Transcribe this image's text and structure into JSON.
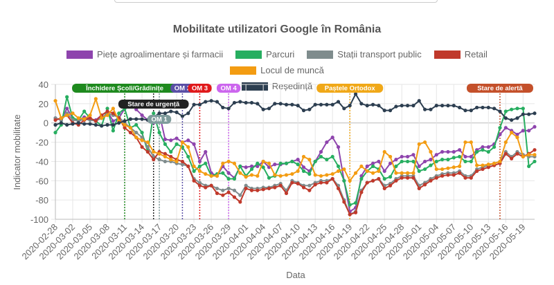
{
  "chart_data": {
    "type": "line",
    "title": "Mobilitate utilizatori Google în România",
    "xlabel": "Data",
    "ylabel": "Indicator mobilitate",
    "ylim": [
      -100,
      40
    ],
    "yticks": [
      40,
      20,
      0,
      -20,
      -40,
      -60,
      -80,
      -100
    ],
    "grid": true,
    "legend_position": "top",
    "x": [
      "2020-02-28",
      "2020-02-29",
      "2020-03-01",
      "2020-03-02",
      "2020-03-03",
      "2020-03-04",
      "2020-03-05",
      "2020-03-06",
      "2020-03-07",
      "2020-03-08",
      "2020-03-09",
      "2020-03-10",
      "2020-03-11",
      "2020-03-12",
      "2020-03-13",
      "2020-03-14",
      "2020-03-15",
      "2020-03-16",
      "2020-03-17",
      "2020-03-18",
      "2020-03-19",
      "2020-03-20",
      "2020-03-21",
      "2020-03-22",
      "2020-03-23",
      "2020-03-24",
      "2020-03-25",
      "2020-03-26",
      "2020-03-27",
      "2020-03-28",
      "2020-03-29",
      "2020-03-30",
      "2020-03-31",
      "2020-04-01",
      "2020-04-02",
      "2020-04-03",
      "2020-04-04",
      "2020-04-05",
      "2020-04-06",
      "2020-04-07",
      "2020-04-08",
      "2020-04-09",
      "2020-04-10",
      "2020-04-11",
      "2020-04-12",
      "2020-04-13",
      "2020-04-14",
      "2020-04-15",
      "2020-04-16",
      "2020-04-17",
      "2020-04-18",
      "2020-04-19",
      "2020-04-20",
      "2020-04-21",
      "2020-04-22",
      "2020-04-23",
      "2020-04-24",
      "2020-04-25",
      "2020-04-26",
      "2020-04-27",
      "2020-04-28",
      "2020-04-29",
      "2020-04-30",
      "2020-05-01",
      "2020-05-02",
      "2020-05-03",
      "2020-05-04",
      "2020-05-05",
      "2020-05-06",
      "2020-05-07",
      "2020-05-08",
      "2020-05-09",
      "2020-05-10",
      "2020-05-11",
      "2020-05-12",
      "2020-05-13",
      "2020-05-14",
      "2020-05-15",
      "2020-05-16",
      "2020-05-17",
      "2020-05-18",
      "2020-05-19",
      "2020-05-20",
      "2020-05-21"
    ],
    "tick_every_days": 3,
    "series": [
      {
        "name": "Piețe agroalimentare și farmacii",
        "color": "#8e44ad",
        "values": [
          5,
          3,
          15,
          5,
          3,
          6,
          4,
          3,
          8,
          12,
          2,
          5,
          15,
          20,
          14,
          8,
          3,
          0,
          10,
          -17,
          -18,
          -16,
          -20,
          -18,
          -22,
          -40,
          -30,
          -52,
          -55,
          -45,
          -52,
          -57,
          -45,
          -46,
          -45,
          -45,
          -40,
          -46,
          -43,
          -43,
          -42,
          -40,
          -38,
          -46,
          -50,
          -40,
          -30,
          -20,
          -15,
          -25,
          -60,
          -92,
          -88,
          -55,
          -45,
          -42,
          -40,
          -50,
          -42,
          -38,
          -35,
          -35,
          -33,
          -45,
          -40,
          -38,
          -33,
          -30,
          -30,
          -30,
          -28,
          -35,
          -35,
          -28,
          -25,
          -25,
          -22,
          -12,
          -5,
          -8,
          -12,
          -8,
          -8,
          -4
        ]
      },
      {
        "name": "Parcuri",
        "color": "#27ae60",
        "values": [
          -10,
          -2,
          27,
          5,
          3,
          12,
          5,
          2,
          -3,
          15,
          -8,
          10,
          15,
          -5,
          -2,
          -10,
          -30,
          10,
          -10,
          -22,
          -30,
          -22,
          -25,
          -35,
          -50,
          -45,
          -42,
          -55,
          -53,
          -52,
          -58,
          -58,
          -45,
          -55,
          -48,
          -42,
          -46,
          -57,
          -55,
          -42,
          -42,
          -40,
          -43,
          -50,
          -53,
          -40,
          -35,
          -38,
          -35,
          -45,
          -60,
          -85,
          -83,
          -58,
          -50,
          -45,
          -48,
          -58,
          -56,
          -45,
          -40,
          -40,
          -40,
          -50,
          -48,
          -44,
          -40,
          -38,
          -38,
          -36,
          -35,
          -40,
          -40,
          -30,
          -28,
          -30,
          -25,
          -5,
          12,
          14,
          15,
          15,
          -45,
          -40
        ]
      },
      {
        "name": "Stații transport public",
        "color": "#7f8c8d",
        "values": [
          5,
          3,
          10,
          3,
          2,
          4,
          3,
          2,
          5,
          10,
          8,
          6,
          0,
          -5,
          -10,
          -15,
          -25,
          -35,
          -38,
          -40,
          -40,
          -42,
          -43,
          -45,
          -58,
          -62,
          -65,
          -65,
          -68,
          -70,
          -68,
          -70,
          -75,
          -65,
          -68,
          -68,
          -67,
          -67,
          -65,
          -63,
          -70,
          -60,
          -62,
          -65,
          -65,
          -62,
          -60,
          -60,
          -58,
          -65,
          -80,
          -95,
          -92,
          -70,
          -62,
          -60,
          -58,
          -65,
          -63,
          -58,
          -55,
          -55,
          -55,
          -65,
          -62,
          -58,
          -55,
          -53,
          -52,
          -52,
          -50,
          -55,
          -55,
          -48,
          -46,
          -44,
          -42,
          -40,
          -30,
          -35,
          -30,
          -33,
          -35,
          -35
        ]
      },
      {
        "name": "Retail",
        "color": "#c0392b",
        "values": [
          3,
          5,
          8,
          0,
          -2,
          3,
          5,
          2,
          8,
          12,
          10,
          5,
          -5,
          -10,
          -15,
          -25,
          -30,
          -38,
          -30,
          -32,
          -35,
          -38,
          -40,
          -45,
          -60,
          -65,
          -67,
          -65,
          -73,
          -75,
          -72,
          -77,
          -82,
          -68,
          -70,
          -70,
          -69,
          -68,
          -67,
          -65,
          -73,
          -62,
          -63,
          -67,
          -70,
          -64,
          -62,
          -62,
          -58,
          -68,
          -82,
          -95,
          -93,
          -72,
          -62,
          -60,
          -58,
          -68,
          -65,
          -60,
          -57,
          -57,
          -57,
          -68,
          -64,
          -60,
          -57,
          -55,
          -54,
          -54,
          -52,
          -57,
          -57,
          -50,
          -48,
          -46,
          -44,
          -42,
          -32,
          -37,
          -32,
          -35,
          -32,
          -28
        ]
      },
      {
        "name": "Locul de muncă",
        "color": "#f39c12",
        "values": [
          23,
          5,
          8,
          10,
          5,
          4,
          8,
          25,
          5,
          8,
          15,
          2,
          -2,
          -5,
          -15,
          -18,
          -20,
          -30,
          -32,
          -35,
          -38,
          -40,
          -20,
          -25,
          -45,
          -50,
          -53,
          -55,
          -55,
          -42,
          -40,
          -42,
          -52,
          -56,
          -54,
          -55,
          -40,
          -42,
          -54,
          -55,
          -54,
          -53,
          -50,
          -35,
          -38,
          -54,
          -55,
          -54,
          -53,
          -50,
          -48,
          -60,
          -52,
          -45,
          -50,
          -52,
          -50,
          -30,
          -35,
          -52,
          -52,
          -52,
          -52,
          -22,
          -20,
          -30,
          -48,
          -48,
          -47,
          -46,
          -45,
          -20,
          -20,
          -44,
          -44,
          -43,
          -42,
          -40,
          -20,
          -10,
          -15,
          -35,
          -33,
          -33
        ]
      },
      {
        "name": "Reședință",
        "color": "#2c3e50",
        "values": [
          -2,
          0,
          -2,
          -1,
          0,
          -1,
          -1,
          -2,
          -3,
          -2,
          -2,
          0,
          2,
          4,
          4,
          4,
          3,
          6,
          10,
          10,
          12,
          11,
          7,
          10,
          19,
          19,
          22,
          23,
          22,
          16,
          15,
          21,
          22,
          21,
          21,
          20,
          14,
          15,
          20,
          20,
          19,
          19,
          18,
          13,
          14,
          19,
          19,
          19,
          19,
          22,
          15,
          18,
          30,
          20,
          18,
          19,
          18,
          13,
          13,
          17,
          18,
          18,
          18,
          23,
          14,
          14,
          18,
          18,
          18,
          18,
          16,
          13,
          13,
          16,
          16,
          16,
          15,
          12,
          5,
          3,
          5,
          9,
          9,
          10
        ]
      }
    ],
    "annotations": [
      {
        "label": "Închidere Școli/Grădinițe",
        "date": "2020-03-11",
        "color": "#1e8a1e"
      },
      {
        "label": "Stare de urgență",
        "date": "2020-03-16",
        "color": "#222222"
      },
      {
        "label": "OM 1",
        "date": "2020-03-17",
        "color": "#7f9c9c"
      },
      {
        "label": "OM 2",
        "date": "2020-03-21",
        "color": "#5a4fa6"
      },
      {
        "label": "OM 3",
        "date": "2020-03-24",
        "color": "#e0191b"
      },
      {
        "label": "OM 4",
        "date": "2020-03-29",
        "color": "#cc66ee"
      },
      {
        "label": "Paștele Ortodox",
        "date": "2020-04-19",
        "color": "#f0a818"
      },
      {
        "label": "Stare de alertă",
        "date": "2020-05-15",
        "color": "#c4502a"
      }
    ]
  }
}
